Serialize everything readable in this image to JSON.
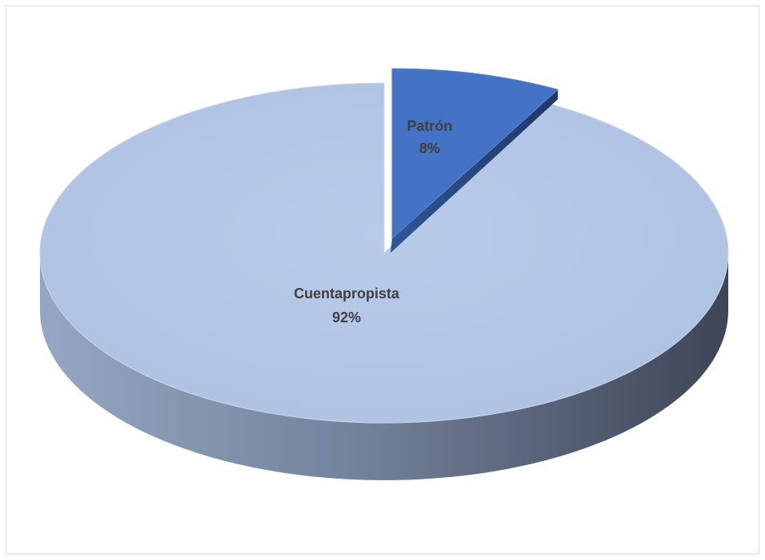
{
  "chart_data": {
    "type": "pie",
    "title": "",
    "slices": [
      {
        "label": "Patrón",
        "percent_label": "8%",
        "value": 8,
        "color": "#4472c4",
        "exploded": true
      },
      {
        "label": "Cuentapropista",
        "percent_label": "92%",
        "value": 92,
        "color": "#b4c7e7",
        "exploded": false
      }
    ],
    "legend": "none",
    "style": "3d"
  }
}
